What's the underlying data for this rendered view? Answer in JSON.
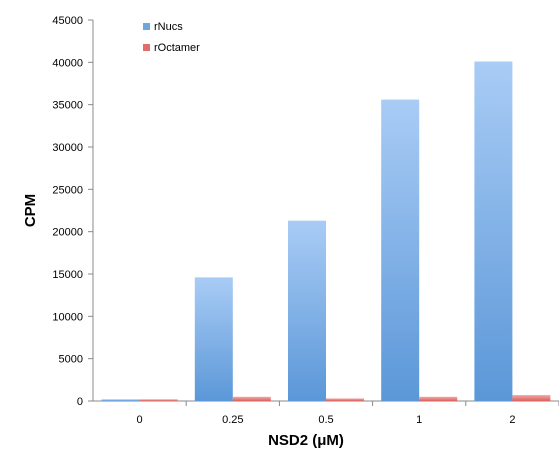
{
  "chart_data": {
    "type": "bar",
    "title": "",
    "xlabel": "NSD2 (μM)",
    "ylabel": "CPM",
    "categories": [
      "0",
      "0.25",
      "0.5",
      "1",
      "2"
    ],
    "series": [
      {
        "name": "rNucs",
        "values": [
          200,
          14600,
          21300,
          35600,
          40100
        ],
        "color": "#6ea6e0"
      },
      {
        "name": "rOctamer",
        "values": [
          200,
          500,
          300,
          500,
          700
        ],
        "color": "#e06e6e"
      }
    ],
    "ylim": [
      0,
      45000
    ],
    "yticks": [
      0,
      5000,
      10000,
      15000,
      20000,
      25000,
      30000,
      35000,
      40000,
      45000
    ],
    "grid": false,
    "legend_position": "top-left"
  }
}
